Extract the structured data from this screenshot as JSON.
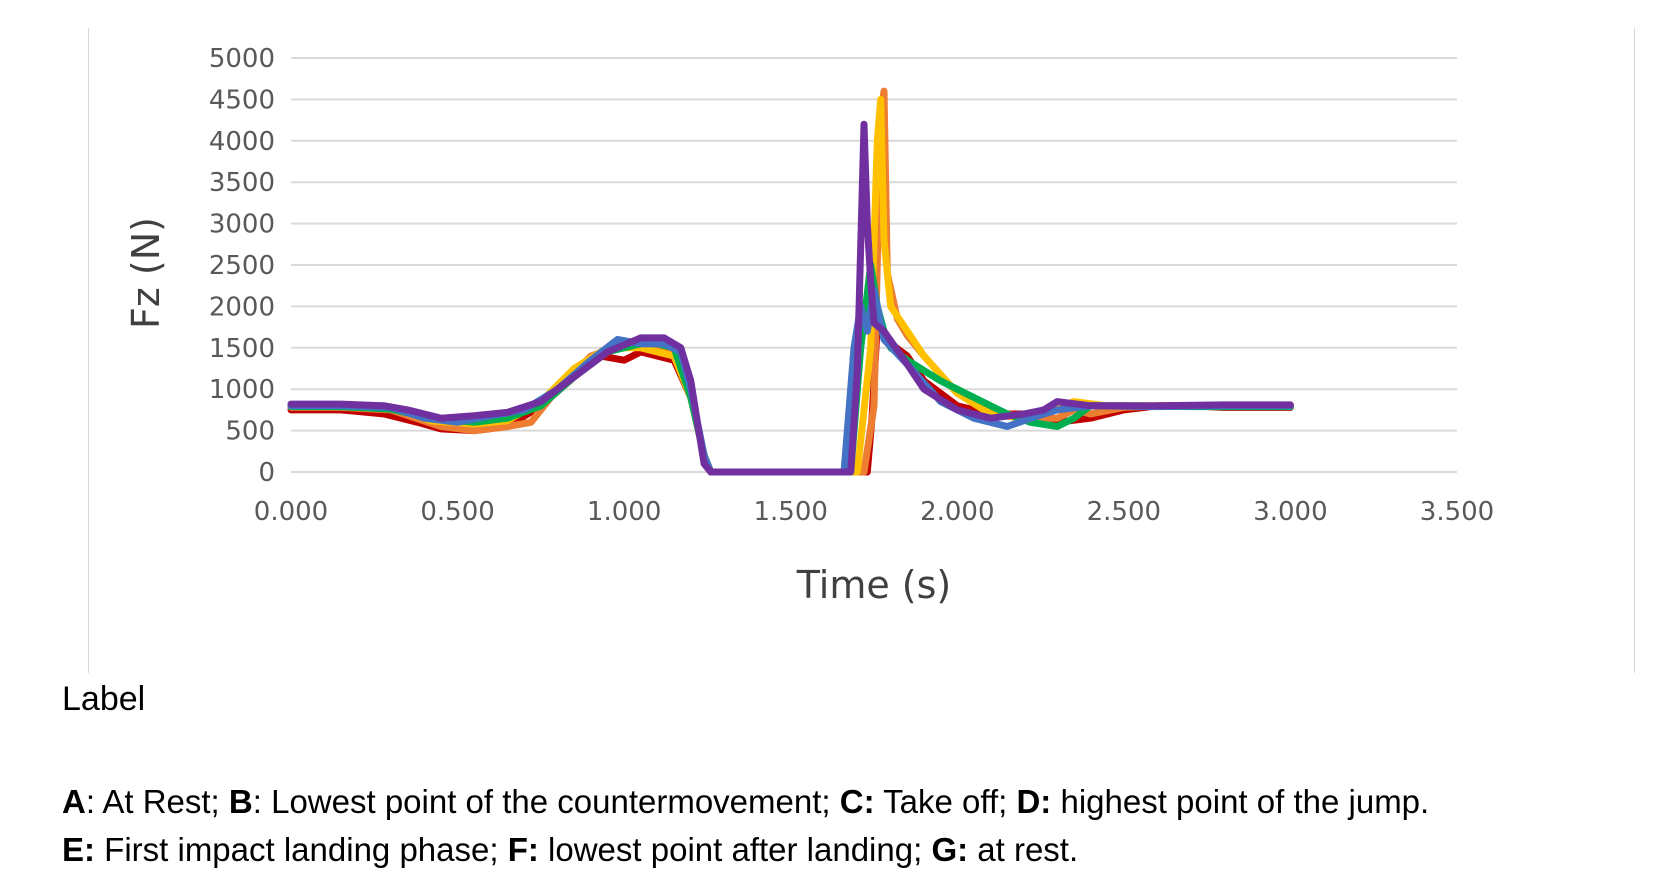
{
  "chart_data": {
    "type": "line",
    "xlabel": "Time (s)",
    "ylabel": "Fz (N)",
    "xlim": [
      0,
      3.5
    ],
    "ylim": [
      0,
      5000
    ],
    "x_ticks": [
      "0.000",
      "0.500",
      "1.000",
      "1.500",
      "2.000",
      "2.500",
      "3.000",
      "3.500"
    ],
    "y_ticks": [
      "0",
      "500",
      "1000",
      "1500",
      "2000",
      "2500",
      "3000",
      "3500",
      "4000",
      "4500",
      "5000"
    ],
    "grid": "horizontal",
    "legend": "none",
    "series": [
      {
        "color": "#c00000",
        "x": [
          0,
          0.15,
          0.28,
          0.38,
          0.45,
          0.55,
          0.65,
          0.75,
          0.85,
          0.93,
          1.0,
          1.05,
          1.1,
          1.15,
          1.2,
          1.24,
          1.26,
          1.5,
          1.7,
          1.73,
          1.745,
          1.76,
          1.78,
          1.8,
          1.85,
          1.9,
          2.0,
          2.1,
          2.2,
          2.3,
          2.4,
          2.5,
          2.6,
          2.7,
          2.8,
          3.0
        ],
        "y": [
          750,
          750,
          700,
          600,
          520,
          500,
          550,
          800,
          1150,
          1400,
          1350,
          1450,
          1400,
          1350,
          900,
          200,
          0,
          0,
          0,
          0,
          700,
          1800,
          1700,
          1550,
          1400,
          1100,
          800,
          700,
          700,
          600,
          650,
          750,
          800,
          800,
          780,
          780
        ]
      },
      {
        "color": "#ed7d31",
        "x": [
          0,
          0.15,
          0.3,
          0.45,
          0.55,
          0.65,
          0.72,
          0.8,
          0.9,
          1.0,
          1.1,
          1.15,
          1.2,
          1.24,
          1.26,
          1.5,
          1.72,
          1.75,
          1.77,
          1.78,
          1.79,
          1.82,
          1.85,
          1.9,
          2.0,
          2.1,
          2.2,
          2.3,
          2.35,
          2.4,
          2.5,
          2.6,
          2.8,
          3.0
        ],
        "y": [
          780,
          780,
          750,
          550,
          500,
          550,
          600,
          1000,
          1400,
          1550,
          1500,
          1400,
          900,
          200,
          0,
          0,
          0,
          800,
          4300,
          4600,
          2400,
          1850,
          1650,
          1400,
          950,
          750,
          650,
          650,
          750,
          700,
          780,
          800,
          800,
          790
        ]
      },
      {
        "color": "#ffc000",
        "x": [
          0,
          0.15,
          0.3,
          0.42,
          0.55,
          0.65,
          0.75,
          0.85,
          0.95,
          1.05,
          1.15,
          1.2,
          1.24,
          1.26,
          1.5,
          1.7,
          1.74,
          1.76,
          1.77,
          1.78,
          1.8,
          1.85,
          1.9,
          2.0,
          2.1,
          2.2,
          2.28,
          2.35,
          2.45,
          2.6,
          2.8,
          3.0
        ],
        "y": [
          800,
          800,
          780,
          620,
          580,
          620,
          850,
          1250,
          1500,
          1500,
          1400,
          900,
          200,
          0,
          0,
          0,
          1500,
          4000,
          4500,
          2800,
          2000,
          1700,
          1400,
          950,
          700,
          650,
          750,
          850,
          800,
          800,
          800,
          800
        ]
      },
      {
        "color": "#00b050",
        "x": [
          0,
          0.15,
          0.3,
          0.42,
          0.55,
          0.65,
          0.75,
          0.85,
          0.95,
          1.05,
          1.1,
          1.15,
          1.2,
          1.24,
          1.26,
          1.5,
          1.68,
          1.71,
          1.74,
          1.76,
          1.78,
          1.8,
          1.85,
          1.95,
          2.05,
          2.15,
          2.22,
          2.3,
          2.35,
          2.4,
          2.5,
          2.7,
          3.0
        ],
        "y": [
          790,
          790,
          760,
          650,
          600,
          650,
          800,
          1150,
          1450,
          1550,
          1550,
          1500,
          900,
          200,
          0,
          0,
          0,
          1500,
          2500,
          2000,
          1700,
          1500,
          1350,
          1100,
          900,
          700,
          600,
          550,
          650,
          800,
          800,
          790,
          790
        ]
      },
      {
        "color": "#4472c4",
        "x": [
          0,
          0.15,
          0.3,
          0.4,
          0.5,
          0.6,
          0.7,
          0.8,
          0.9,
          0.98,
          1.05,
          1.12,
          1.17,
          1.2,
          1.24,
          1.26,
          1.5,
          1.66,
          1.69,
          1.71,
          1.73,
          1.75,
          1.78,
          1.85,
          1.95,
          2.05,
          2.15,
          2.22,
          2.3,
          2.4,
          2.6,
          2.8,
          3.0
        ],
        "y": [
          800,
          800,
          780,
          650,
          600,
          680,
          750,
          1000,
          1350,
          1600,
          1550,
          1550,
          1450,
          1000,
          200,
          0,
          0,
          0,
          1500,
          2000,
          1700,
          2200,
          1600,
          1300,
          850,
          650,
          550,
          650,
          750,
          800,
          790,
          800,
          800
        ]
      },
      {
        "color": "#7030a0",
        "x": [
          0,
          0.15,
          0.28,
          0.35,
          0.45,
          0.55,
          0.65,
          0.75,
          0.85,
          0.95,
          1.05,
          1.12,
          1.17,
          1.2,
          1.22,
          1.24,
          1.26,
          1.5,
          1.68,
          1.7,
          1.72,
          1.73,
          1.74,
          1.75,
          1.78,
          1.85,
          1.9,
          2.0,
          2.1,
          2.2,
          2.26,
          2.3,
          2.4,
          2.6,
          2.8,
          3.0
        ],
        "y": [
          820,
          820,
          800,
          750,
          650,
          680,
          720,
          850,
          1150,
          1450,
          1620,
          1620,
          1500,
          1100,
          600,
          100,
          0,
          0,
          0,
          1200,
          4200,
          3000,
          2300,
          1800,
          1700,
          1300,
          1000,
          750,
          650,
          700,
          750,
          850,
          800,
          800,
          810,
          810
        ]
      }
    ]
  },
  "caption": {
    "label": "Label",
    "line1": [
      {
        "b": "A",
        "t": ": At Rest; "
      },
      {
        "b": "B",
        "t": ": Lowest point of the countermovement; "
      },
      {
        "b": "C:",
        "t": " Take off; "
      },
      {
        "b": "D:",
        "t": " highest point of the jump."
      }
    ],
    "line2": [
      {
        "b": "E:",
        "t": " First impact landing phase; "
      },
      {
        "b": "F:",
        "t": " lowest point after landing; "
      },
      {
        "b": "G:",
        "t": " at rest."
      }
    ]
  }
}
